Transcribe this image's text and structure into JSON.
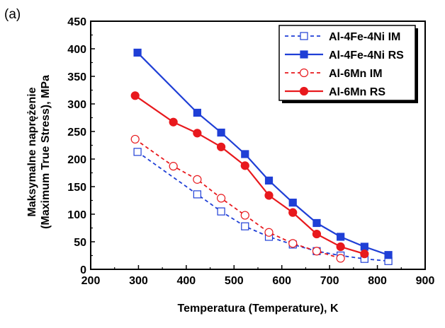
{
  "chart_data": {
    "type": "line",
    "panel_label": "(a)",
    "xlabel": "Temperatura (Temperature), K",
    "ylabel_line1": "Maksymalne naprężenie",
    "ylabel_line2": "(Maximum True Stress), MPa",
    "xlim": [
      200,
      900
    ],
    "ylim": [
      0,
      450
    ],
    "x_ticks": [
      200,
      300,
      400,
      500,
      600,
      700,
      800,
      900
    ],
    "y_ticks": [
      0,
      50,
      100,
      150,
      200,
      250,
      300,
      350,
      400,
      450
    ],
    "grid": false,
    "legend_position": "top-right",
    "series": [
      {
        "name": "Al-4Fe-4Ni IM",
        "color": "#1f3fd6",
        "line": "dashed",
        "marker": "square",
        "filled": false,
        "points": [
          [
            298,
            213
          ],
          [
            423,
            136
          ],
          [
            473,
            105
          ],
          [
            523,
            78
          ],
          [
            573,
            59
          ],
          [
            623,
            45
          ],
          [
            673,
            33
          ],
          [
            723,
            25
          ],
          [
            773,
            19
          ],
          [
            823,
            15
          ]
        ]
      },
      {
        "name": "Al-4Fe-4Ni RS",
        "color": "#1f3fd6",
        "line": "solid",
        "marker": "square",
        "filled": true,
        "points": [
          [
            298,
            393
          ],
          [
            423,
            284
          ],
          [
            473,
            248
          ],
          [
            523,
            209
          ],
          [
            573,
            161
          ],
          [
            623,
            121
          ],
          [
            673,
            84
          ],
          [
            723,
            59
          ],
          [
            773,
            41
          ],
          [
            823,
            26
          ]
        ]
      },
      {
        "name": "Al-6Mn IM",
        "color": "#e8191d",
        "line": "dashed",
        "marker": "circle",
        "filled": false,
        "points": [
          [
            293,
            236
          ],
          [
            373,
            187
          ],
          [
            423,
            163
          ],
          [
            473,
            129
          ],
          [
            523,
            98
          ],
          [
            573,
            67
          ],
          [
            623,
            47
          ],
          [
            673,
            33
          ],
          [
            723,
            20
          ]
        ]
      },
      {
        "name": "Al-6Mn RS",
        "color": "#e8191d",
        "line": "solid",
        "marker": "circle",
        "filled": true,
        "points": [
          [
            293,
            315
          ],
          [
            373,
            267
          ],
          [
            423,
            247
          ],
          [
            473,
            222
          ],
          [
            523,
            188
          ],
          [
            573,
            134
          ],
          [
            623,
            103
          ],
          [
            673,
            64
          ],
          [
            723,
            41
          ],
          [
            773,
            28
          ]
        ]
      }
    ]
  }
}
